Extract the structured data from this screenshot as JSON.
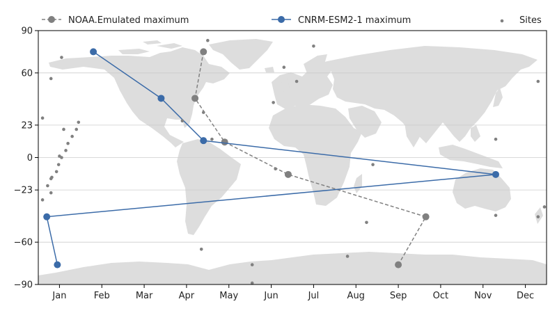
{
  "chart_data": {
    "type": "scatter",
    "title": "",
    "xlabel": "",
    "ylabel": "",
    "x_unit": "month",
    "xlim": [
      0.5,
      12.5
    ],
    "ylim": [
      -90,
      90
    ],
    "x_ticks": [
      {
        "value": 1,
        "label": "Jan"
      },
      {
        "value": 2,
        "label": "Feb"
      },
      {
        "value": 3,
        "label": "Mar"
      },
      {
        "value": 4,
        "label": "Apr"
      },
      {
        "value": 5,
        "label": "May"
      },
      {
        "value": 6,
        "label": "Jun"
      },
      {
        "value": 7,
        "label": "Jul"
      },
      {
        "value": 8,
        "label": "Aug"
      },
      {
        "value": 9,
        "label": "Sep"
      },
      {
        "value": 10,
        "label": "Oct"
      },
      {
        "value": 11,
        "label": "Nov"
      },
      {
        "value": 12,
        "label": "Dec"
      }
    ],
    "y_ticks": [
      {
        "value": 90,
        "label": "90"
      },
      {
        "value": 60,
        "label": "60"
      },
      {
        "value": 23,
        "label": "23"
      },
      {
        "value": 0,
        "label": "0"
      },
      {
        "value": -23,
        "label": "−23"
      },
      {
        "value": -60,
        "label": "−60"
      },
      {
        "value": -90,
        "label": "−90"
      }
    ],
    "grid": true,
    "background": "world map (land masses)",
    "legend_placement": "top",
    "series": [
      {
        "name": "NOAA.Emulated maximum",
        "color": "#808080",
        "line_style": "dashed",
        "points": [
          {
            "x": 4.4,
            "y": 75
          },
          {
            "x": 4.2,
            "y": 42
          },
          {
            "x": 4.9,
            "y": 11
          },
          {
            "x": 6.4,
            "y": -12
          },
          {
            "x": 9.65,
            "y": -42
          },
          {
            "x": 9.0,
            "y": -76
          }
        ]
      },
      {
        "name": "CNRM-ESM2-1 maximum",
        "color": "#3b6ba8",
        "line_style": "solid",
        "points": [
          {
            "x": 1.8,
            "y": 75
          },
          {
            "x": 3.4,
            "y": 42
          },
          {
            "x": 4.4,
            "y": 12
          },
          {
            "x": 11.3,
            "y": -12
          },
          {
            "x": 0.7,
            "y": -42
          },
          {
            "x": 0.95,
            "y": -76
          }
        ]
      },
      {
        "name": "Sites",
        "color": "#808080",
        "marker": "dot",
        "points": [
          {
            "x": 0.6,
            "y": 28
          },
          {
            "x": 0.6,
            "y": -30
          },
          {
            "x": 0.72,
            "y": -20
          },
          {
            "x": 0.8,
            "y": -15
          },
          {
            "x": 0.82,
            "y": -14
          },
          {
            "x": 0.8,
            "y": -25
          },
          {
            "x": 0.93,
            "y": -10
          },
          {
            "x": 0.98,
            "y": -5
          },
          {
            "x": 1.0,
            "y": 1
          },
          {
            "x": 1.05,
            "y": 0
          },
          {
            "x": 1.1,
            "y": 20
          },
          {
            "x": 1.15,
            "y": 5
          },
          {
            "x": 1.2,
            "y": 10
          },
          {
            "x": 1.3,
            "y": 15
          },
          {
            "x": 1.4,
            "y": 20
          },
          {
            "x": 1.45,
            "y": 25
          },
          {
            "x": 1.05,
            "y": 71
          },
          {
            "x": 0.8,
            "y": 56
          },
          {
            "x": 4.5,
            "y": 83
          },
          {
            "x": 4.4,
            "y": 32
          },
          {
            "x": 4.6,
            "y": 13
          },
          {
            "x": 4.35,
            "y": -65
          },
          {
            "x": 3.9,
            "y": 26
          },
          {
            "x": 6.3,
            "y": 64
          },
          {
            "x": 6.6,
            "y": 54
          },
          {
            "x": 6.05,
            "y": 39
          },
          {
            "x": 6.1,
            "y": -8
          },
          {
            "x": 7.0,
            "y": 79
          },
          {
            "x": 8.4,
            "y": -5
          },
          {
            "x": 7.8,
            "y": -70
          },
          {
            "x": 8.25,
            "y": -46
          },
          {
            "x": 5.55,
            "y": -76
          },
          {
            "x": 5.55,
            "y": -89
          },
          {
            "x": 11.3,
            "y": 13
          },
          {
            "x": 11.3,
            "y": -41
          },
          {
            "x": 12.3,
            "y": 54
          },
          {
            "x": 12.3,
            "y": -42
          },
          {
            "x": 12.45,
            "y": -35
          }
        ]
      }
    ]
  }
}
